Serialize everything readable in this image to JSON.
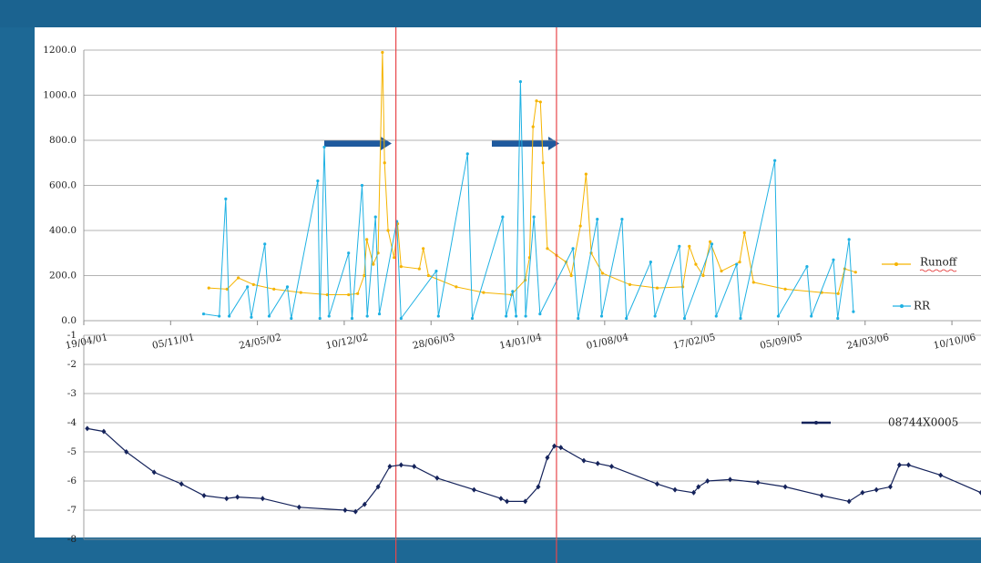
{
  "chart_data": [
    {
      "type": "line",
      "xlim": [
        "2001-04-19",
        "2006-12-16"
      ],
      "xticks": [
        {
          "value": "2001-04-19",
          "label": "19/04/01"
        },
        {
          "value": "2001-11-05",
          "label": "05/11/01"
        },
        {
          "value": "2002-05-24",
          "label": "24/05/02"
        },
        {
          "value": "2002-12-10",
          "label": "10/12/02"
        },
        {
          "value": "2003-06-28",
          "label": "28/06/03"
        },
        {
          "value": "2004-01-14",
          "label": "14/01/04"
        },
        {
          "value": "2004-08-01",
          "label": "01/08/04"
        },
        {
          "value": "2005-02-17",
          "label": "17/02/05"
        },
        {
          "value": "2005-09-05",
          "label": "05/09/05"
        },
        {
          "value": "2006-03-24",
          "label": "24/03/06"
        },
        {
          "value": "2006-10-10",
          "label": "10/10/06"
        }
      ],
      "ylim": [
        0,
        1200
      ],
      "yticks": [
        {
          "value": 0,
          "label": "0.0"
        },
        {
          "value": 200,
          "label": "200.0"
        },
        {
          "value": 400,
          "label": "400.0"
        },
        {
          "value": 600,
          "label": "600.0"
        },
        {
          "value": 800,
          "label": "800.0"
        },
        {
          "value": 1000,
          "label": "1000.0"
        },
        {
          "value": 1200,
          "label": "1200.0"
        }
      ],
      "grid": true,
      "vlines": [
        "2003-04-08",
        "2004-04-12"
      ],
      "series": [
        {
          "name": "Runoff",
          "color": "#f5b400",
          "x": [
            "2002-02-01",
            "2002-03-15",
            "2002-04-10",
            "2002-05-15",
            "2002-07-01",
            "2002-09-01",
            "2002-11-01",
            "2002-12-20",
            "2003-01-10",
            "2003-01-25",
            "2003-01-31",
            "2003-02-15",
            "2003-02-26",
            "2003-03-08",
            "2003-03-13",
            "2003-03-21",
            "2003-04-04",
            "2003-04-12",
            "2003-04-20",
            "2003-06-01",
            "2003-06-10",
            "2003-06-22",
            "2003-08-25",
            "2003-10-27",
            "2003-12-30",
            "2004-01-31",
            "2004-02-10",
            "2004-02-18",
            "2004-02-26",
            "2004-03-06",
            "2004-03-12",
            "2004-03-22",
            "2004-04-12",
            "2004-05-04",
            "2004-05-16",
            "2004-06-06",
            "2004-06-19",
            "2004-07-01",
            "2004-07-27",
            "2004-09-28",
            "2004-11-30",
            "2005-01-28",
            "2005-02-12",
            "2005-02-27",
            "2005-03-16",
            "2005-04-01",
            "2005-04-27",
            "2005-06-08",
            "2005-06-19",
            "2005-07-10",
            "2005-09-21",
            "2005-12-14",
            "2006-01-21",
            "2006-02-05",
            "2006-03-02"
          ],
          "values": [
            145,
            140,
            190,
            160,
            140,
            125,
            115,
            115,
            120,
            200,
            360,
            250,
            300,
            1190,
            700,
            400,
            280,
            430,
            240,
            230,
            320,
            200,
            150,
            125,
            115,
            180,
            280,
            860,
            975,
            970,
            700,
            320,
            290,
            260,
            200,
            420,
            650,
            300,
            210,
            160,
            145,
            150,
            330,
            250,
            200,
            350,
            220,
            260,
            390,
            170,
            140,
            125,
            120,
            230,
            215
          ]
        },
        {
          "name": "RR",
          "color": "#1fb1e3",
          "x": [
            "2002-01-20",
            "2002-02-25",
            "2002-03-12",
            "2002-03-20",
            "2002-05-01",
            "2002-05-10",
            "2002-06-10",
            "2002-06-20",
            "2002-08-01",
            "2002-08-10",
            "2002-10-10",
            "2002-10-15",
            "2002-10-25",
            "2002-11-05",
            "2002-12-20",
            "2002-12-28",
            "2003-01-20",
            "2003-02-01",
            "2003-02-20",
            "2003-03-01",
            "2003-04-10",
            "2003-04-20",
            "2003-07-10",
            "2003-07-15",
            "2003-09-20",
            "2003-10-01",
            "2003-12-10",
            "2003-12-18",
            "2004-01-02",
            "2004-01-10",
            "2004-01-20",
            "2004-02-01",
            "2004-02-20",
            "2004-03-05",
            "2004-05-20",
            "2004-06-01",
            "2004-07-15",
            "2004-07-25",
            "2004-09-10",
            "2004-09-20",
            "2004-11-15",
            "2004-11-25",
            "2005-01-20",
            "2005-02-01",
            "2005-04-05",
            "2005-04-15",
            "2005-06-01",
            "2005-06-10",
            "2005-08-28",
            "2005-09-05",
            "2005-11-10",
            "2005-11-20",
            "2006-01-10",
            "2006-01-20",
            "2006-02-15",
            "2006-02-25"
          ],
          "values": [
            30,
            20,
            540,
            20,
            150,
            15,
            340,
            20,
            150,
            10,
            620,
            10,
            770,
            20,
            300,
            10,
            600,
            20,
            460,
            30,
            440,
            10,
            220,
            20,
            740,
            10,
            460,
            20,
            130,
            20,
            1060,
            20,
            460,
            30,
            320,
            10,
            450,
            20,
            450,
            10,
            260,
            20,
            330,
            10,
            340,
            20,
            250,
            10,
            710,
            20,
            240,
            20,
            270,
            10,
            360,
            40
          ]
        }
      ]
    },
    {
      "type": "line",
      "xlim": [
        "2001-04-19",
        "2006-12-16"
      ],
      "ylim": [
        -8,
        -1
      ],
      "yticks": [
        -1,
        -2,
        -3,
        -4,
        -5,
        -6,
        -7,
        -8
      ],
      "grid": true,
      "series": [
        {
          "name": "08744X0005",
          "color": "#15235b",
          "x": [
            "2001-04-27",
            "2001-06-04",
            "2001-07-26",
            "2001-09-28",
            "2001-11-30",
            "2002-01-21",
            "2002-03-14",
            "2002-04-08",
            "2002-06-05",
            "2002-08-28",
            "2002-12-12",
            "2003-01-05",
            "2003-01-26",
            "2003-02-26",
            "2003-03-25",
            "2003-04-20",
            "2003-05-20",
            "2003-07-12",
            "2003-10-05",
            "2003-12-06",
            "2003-12-20",
            "2004-01-31",
            "2004-03-01",
            "2004-03-22",
            "2004-04-07",
            "2004-04-22",
            "2004-06-14",
            "2004-07-16",
            "2004-08-17",
            "2004-11-30",
            "2005-01-10",
            "2005-02-22",
            "2005-03-05",
            "2005-03-26",
            "2005-05-17",
            "2005-07-20",
            "2005-09-21",
            "2005-12-14",
            "2006-02-15",
            "2006-03-18",
            "2006-04-19",
            "2006-05-21",
            "2006-06-11",
            "2006-07-02",
            "2006-09-14",
            "2006-12-16"
          ],
          "values": [
            -4.2,
            -4.3,
            -5.0,
            -5.7,
            -6.1,
            -6.5,
            -6.6,
            -6.55,
            -6.6,
            -6.9,
            -7.0,
            -7.05,
            -6.8,
            -6.2,
            -5.5,
            -5.45,
            -5.5,
            -5.9,
            -6.3,
            -6.6,
            -6.7,
            -6.7,
            -6.2,
            -5.2,
            -4.8,
            -4.85,
            -5.3,
            -5.4,
            -5.5,
            -6.1,
            -6.3,
            -6.4,
            -6.2,
            -6.0,
            -5.95,
            -6.05,
            -6.2,
            -6.5,
            -6.7,
            -6.4,
            -6.3,
            -6.2,
            -5.45,
            -5.45,
            -5.8,
            -6.4
          ]
        }
      ]
    }
  ]
}
